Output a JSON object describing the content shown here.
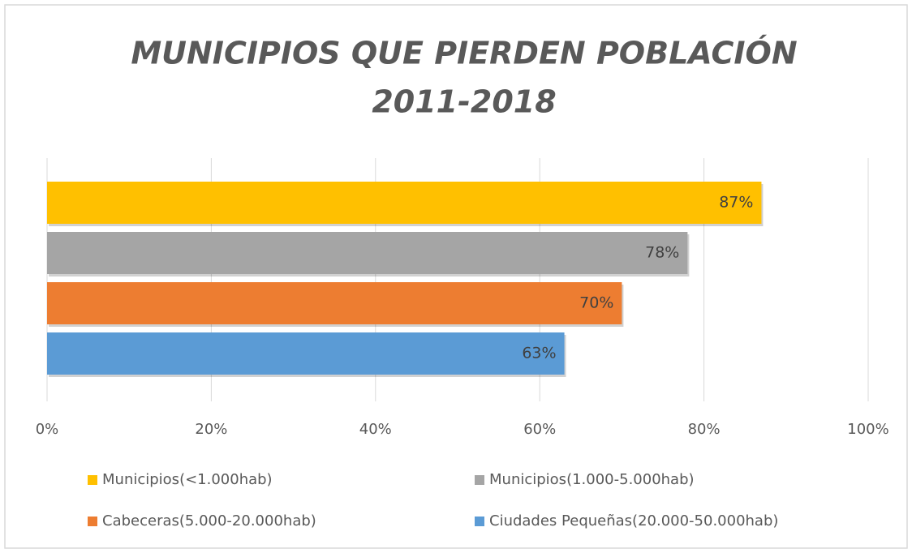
{
  "chart_data": {
    "type": "bar",
    "orientation": "horizontal",
    "title": [
      "MUNICIPIOS QUE PIERDEN POBLACIÓN",
      "2011-2018"
    ],
    "series": [
      {
        "name": "Municipios(<1.000hab)",
        "color": "#ffc000",
        "values": [
          87
        ],
        "value_labels": [
          "87%"
        ]
      },
      {
        "name": "Municipios(1.000-5.000hab)",
        "color": "#a5a5a5",
        "values": [
          78
        ],
        "value_labels": [
          "78%"
        ]
      },
      {
        "name": "Cabeceras(5.000-20.000hab)",
        "color": "#ed7d31",
        "values": [
          70
        ],
        "value_labels": [
          "70%"
        ]
      },
      {
        "name": "Ciudades Pequeñas(20.000-50.000hab)",
        "color": "#5b9bd5",
        "values": [
          63
        ],
        "value_labels": [
          "63%"
        ]
      }
    ],
    "xlim": [
      0,
      100
    ],
    "xticks": [
      {
        "value": 0,
        "label": "0%"
      },
      {
        "value": 20,
        "label": "20%"
      },
      {
        "value": 40,
        "label": "40%"
      },
      {
        "value": 60,
        "label": "60%"
      },
      {
        "value": 80,
        "label": "80%"
      },
      {
        "value": 100,
        "label": "100%"
      }
    ],
    "grid": true,
    "legend": "bottom"
  }
}
